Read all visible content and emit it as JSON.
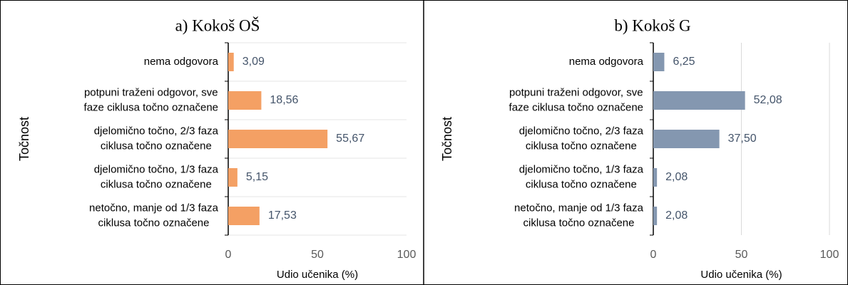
{
  "chart_data": [
    {
      "type": "barh",
      "title": "a) Kokoš OŠ",
      "xlabel": "Udio učenika (%)",
      "ylabel": "Točnost",
      "categories": [
        [
          "nema odgovora"
        ],
        [
          "potpuni traženi odgovor, sve",
          "faze ciklusa točno označene"
        ],
        [
          "djelomično točno, 2/3 faza",
          "ciklusa točno označene"
        ],
        [
          "djelomično točno, 1/3 faza",
          "ciklusa točno označene"
        ],
        [
          "netočno, manje od 1/3 faza",
          "ciklusa točno označene"
        ]
      ],
      "values": [
        3.09,
        18.56,
        55.67,
        5.15,
        17.53
      ],
      "value_labels": [
        "3,09",
        "18,56",
        "55,67",
        "5,15",
        "17,53"
      ],
      "color": "#f4a064",
      "xlim": [
        0,
        100
      ],
      "xticks": [
        0,
        50,
        100
      ],
      "grid": "horizontal"
    },
    {
      "type": "barh",
      "title": "b) Kokoš G",
      "xlabel": "Udio učenika (%)",
      "ylabel": "Točnost",
      "categories": [
        [
          "nema odgovora"
        ],
        [
          "potpuni traženi odgovor, sve",
          "faze ciklusa točno označene"
        ],
        [
          "djelomično točno, 2/3 faza",
          "ciklusa točno označene"
        ],
        [
          "djelomično točno, 1/3 faza",
          "ciklusa točno označene"
        ],
        [
          "netočno, manje od 1/3 faza",
          "ciklusa točno označene"
        ]
      ],
      "values": [
        6.25,
        52.08,
        37.5,
        2.08,
        2.08
      ],
      "value_labels": [
        "6,25",
        "52,08",
        "37,50",
        "2,08",
        "2,08"
      ],
      "color": "#8497b0",
      "xlim": [
        0,
        100
      ],
      "xticks": [
        0,
        50,
        100
      ],
      "grid": "vertical"
    }
  ]
}
